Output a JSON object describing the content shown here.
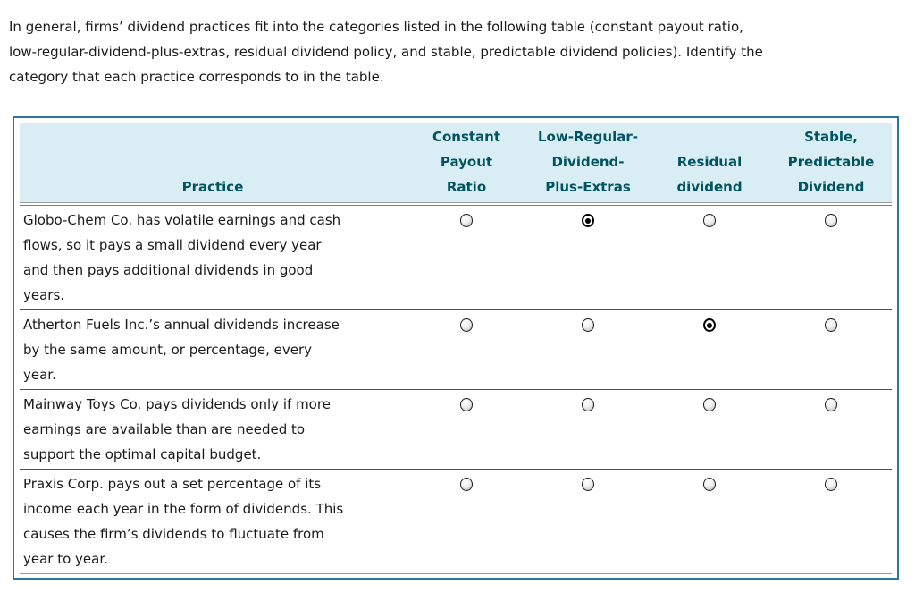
{
  "intro": "In general, firms’ dividend practices fit into the categories listed in the following table (constant payout ratio,\nlow-regular-dividend-plus-extras, residual dividend policy, and stable, predictable dividend policies). Identify the\ncategory that each practice corresponds to in the table.",
  "table": {
    "practice_header": "Practice",
    "category_headers": [
      "Constant\nPayout\nRatio",
      "Low-Regular-\nDividend-\nPlus-Extras",
      "Residual\ndividend",
      "Stable,\nPredictable\nDividend"
    ],
    "rows": [
      {
        "practice": "Globo-Chem Co. has volatile earnings and cash\nflows, so it pays a small dividend every year\nand then pays additional dividends in good\nyears.",
        "selected": 1
      },
      {
        "practice": "Atherton Fuels Inc.’s annual dividends increase\nby the same amount, or percentage, every\nyear.",
        "selected": 2
      },
      {
        "practice": "Mainway Toys Co. pays dividends only if more\nearnings are available than are needed to\nsupport the optimal capital budget.",
        "selected": -1
      },
      {
        "practice": "Praxis Corp. pays out a set percentage of its\nincome each year in the form of dividends. This\ncauses the firm’s dividends to fluctuate from\nyear to year.",
        "selected": -1
      }
    ],
    "colors": {
      "border": "#2e75a3",
      "header_bg": "#d9edf4",
      "header_text": "#00535f"
    }
  }
}
